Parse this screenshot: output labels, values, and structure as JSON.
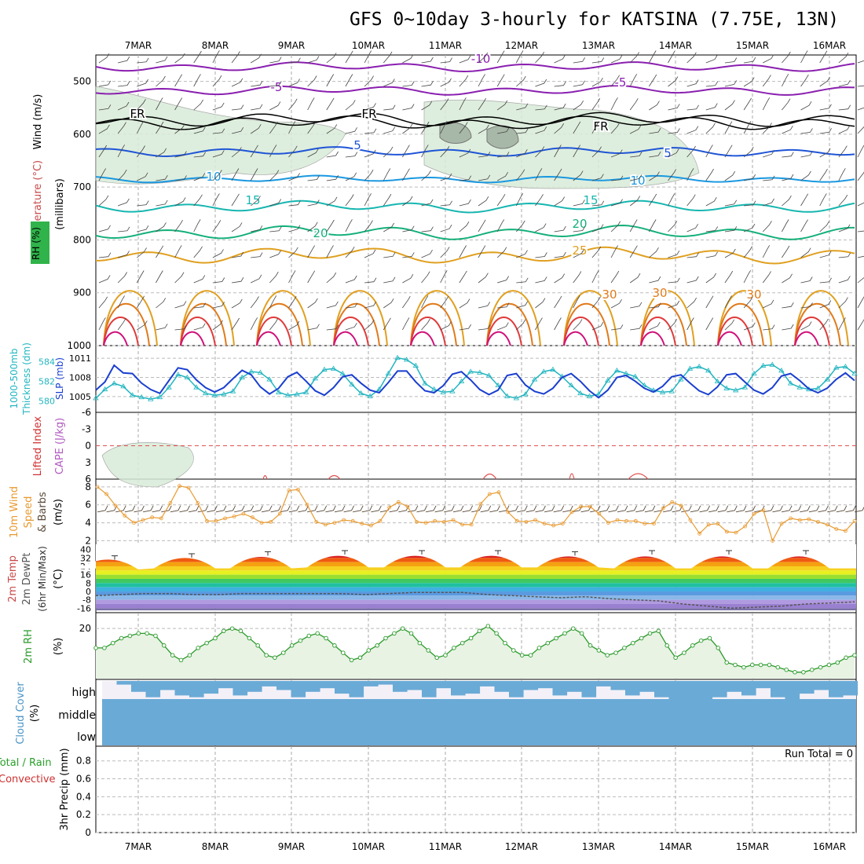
{
  "title": "GFS 0~10day 3-hourly for KATSINA (7.75E, 13N)",
  "colors": {
    "temp_cold": "#8a1fb0",
    "temp_fr": "#000000",
    "temp_5": "#1f55d6",
    "temp_10": "#1a98e0",
    "temp_15": "#16b6b0",
    "temp_20": "#15b07a",
    "temp_25": "#e0a020",
    "temp_30": "#e07a1a",
    "temp_hot": "#e03a3a",
    "temp_hottest": "#d0107a",
    "rh_fill": "#d9ecd9",
    "slp": "#1a3fd0",
    "thickness": "#22b5c0",
    "wind_speed": "#e89a30",
    "barb": "#5a4a3a",
    "rh2m": "#2a9a2a",
    "cloud": "#6aaad6"
  },
  "chart_data": {
    "type": "meteogram",
    "title": "GFS 0~10day 3-hourly for KATSINA (7.75E, 13N)",
    "x_labels": [
      "7MAR",
      "8MAR",
      "9MAR",
      "10MAR",
      "11MAR",
      "12MAR",
      "13MAR",
      "14MAR",
      "15MAR",
      "16MAR"
    ],
    "panel_labels": {
      "p1": [
        "Temperature (°C)",
        "Wind (m/s)",
        "RH (%)",
        "(millibars)"
      ],
      "p2": [
        "1000-500mb",
        "Thickness (dm)",
        "SLP (mb)"
      ],
      "p3": [
        "Lifted Index",
        "CAPE (J/kg)"
      ],
      "p4": [
        "10m Wind",
        "Speed",
        "& Barbs",
        "(m/s)"
      ],
      "p5": [
        "2m Temp",
        "2m DewPt",
        "(6hr Min/Max)",
        "(°C)"
      ],
      "p6": [
        "2m RH",
        "(%)"
      ],
      "p7": [
        "Cloud Cover",
        "(%)"
      ],
      "p8": [
        "Total / Rain",
        "Convective",
        "3hr Precip (mm)"
      ]
    },
    "pressure_ticks": [
      "500",
      "600",
      "700",
      "800",
      "900",
      "1000"
    ],
    "contour_labels": [
      "-10",
      "-5",
      "-5",
      "FR",
      "FR",
      "FR",
      "5",
      "5",
      "10",
      "10",
      "15",
      "15",
      "20",
      "20",
      "25",
      "30",
      "30",
      "30"
    ],
    "thickness": {
      "ticks": [
        "584",
        "582",
        "580"
      ],
      "values": [
        580.3,
        581.2,
        581.8,
        581.5,
        580.6,
        580.4,
        580.2,
        580.4,
        581.4,
        582.7,
        582.4,
        581.4,
        580.8,
        580.6,
        580.7,
        581.0,
        582.4,
        583.0,
        582.9,
        582.2,
        580.9,
        580.6,
        580.7,
        580.9,
        582.3,
        583.2,
        583.3,
        582.8,
        581.7,
        580.8,
        580.5,
        581.2,
        582.8,
        584.4,
        584.2,
        583.6,
        581.8,
        581.2,
        580.9,
        581.0,
        582.0,
        583.0,
        582.9,
        582.6,
        581.6,
        580.5,
        580.3,
        580.7,
        582.2,
        583.0,
        583.2,
        582.5,
        581.6,
        580.8,
        580.5,
        580.7,
        582.1,
        583.1,
        582.8,
        582.5,
        581.6,
        581.1,
        580.9,
        581.0,
        582.2,
        583.3,
        583.5,
        583.1,
        582.0,
        581.3,
        581.1,
        581.4,
        582.8,
        583.6,
        583.7,
        583.1,
        581.8,
        581.4,
        581.2,
        581.3,
        582.2,
        583.4,
        583.5,
        582.8
      ]
    },
    "slp": {
      "ticks": [
        "1011",
        "1008",
        "1005"
      ],
      "values": [
        1006.0,
        1007.3,
        1009.9,
        1008.7,
        1008.6,
        1007.1,
        1006.1,
        1005.5,
        1007.5,
        1009.5,
        1009.2,
        1007.6,
        1006.4,
        1005.7,
        1006.4,
        1007.8,
        1009.1,
        1008.4,
        1006.5,
        1005.4,
        1006.3,
        1008.1,
        1008.8,
        1007.4,
        1005.9,
        1005.2,
        1006.4,
        1008.1,
        1008.4,
        1007.1,
        1006.0,
        1005.6,
        1007.2,
        1009.0,
        1009.0,
        1007.3,
        1005.9,
        1005.6,
        1006.7,
        1008.5,
        1008.9,
        1007.6,
        1006.1,
        1005.3,
        1006.0,
        1008.3,
        1008.6,
        1006.8,
        1005.8,
        1005.4,
        1006.3,
        1008.0,
        1008.6,
        1007.4,
        1005.9,
        1004.8,
        1006.0,
        1008.0,
        1008.3,
        1007.4,
        1006.3,
        1005.7,
        1006.6,
        1008.1,
        1008.4,
        1007.1,
        1005.9,
        1005.3,
        1006.5,
        1008.4,
        1008.6,
        1007.3,
        1006.0,
        1005.4,
        1006.4,
        1008.2,
        1008.6,
        1007.5,
        1006.2,
        1005.6,
        1006.3,
        1007.7,
        1008.7,
        1007.5
      ]
    },
    "lifted_index": {
      "ticks": [
        "-6",
        "-3",
        "0",
        "3",
        "6"
      ]
    },
    "wind_speed": {
      "ticks": [
        "8",
        "6",
        "4",
        "2"
      ],
      "values": [
        8.0,
        7.2,
        5.9,
        4.8,
        4.0,
        4.3,
        4.6,
        4.5,
        6.2,
        8.1,
        7.9,
        6.2,
        4.2,
        4.2,
        4.5,
        4.7,
        5.0,
        4.6,
        4.0,
        4.1,
        5.0,
        7.6,
        7.7,
        6.0,
        4.1,
        3.8,
        4.0,
        4.3,
        4.2,
        3.9,
        3.7,
        4.2,
        5.7,
        6.3,
        5.8,
        4.1,
        4.0,
        4.2,
        4.1,
        4.3,
        3.8,
        3.8,
        6.1,
        7.2,
        7.4,
        5.2,
        4.2,
        4.1,
        4.3,
        3.9,
        3.7,
        3.9,
        5.2,
        5.8,
        5.8,
        5.0,
        4.0,
        4.3,
        4.2,
        4.2,
        3.9,
        3.9,
        5.6,
        6.3,
        5.9,
        4.3,
        2.8,
        3.8,
        3.9,
        3.0,
        2.9,
        3.6,
        5.0,
        5.4,
        2.0,
        3.9,
        4.5,
        4.3,
        4.4,
        4.1,
        3.8,
        3.3,
        3.1,
        4.2
      ]
    },
    "temperature": {
      "ticks": [
        "40",
        "32",
        "24",
        "16",
        "8",
        "0",
        "-8",
        "-16"
      ],
      "max": [
        34,
        36,
        38,
        39,
        39,
        39,
        38,
        39,
        39,
        39
      ],
      "min": [
        21,
        22,
        22,
        23,
        23,
        23,
        23,
        22,
        22,
        22
      ],
      "dewpoint": [
        -4,
        -3,
        -2,
        -2,
        -3,
        -3,
        -2,
        -2,
        -2,
        -2,
        -2,
        -3,
        -2,
        -1,
        -1,
        -1,
        -3,
        -4,
        -5,
        -6,
        -5,
        -7,
        -8,
        -9,
        -12,
        -14,
        -16,
        -15,
        -14,
        -12,
        -11,
        -10
      ]
    },
    "rh2m": {
      "ticks": [
        "20"
      ],
      "values": [
        12,
        12,
        14,
        16,
        17,
        18,
        18,
        17,
        13,
        9,
        7,
        9,
        12,
        14,
        16,
        19,
        20,
        19,
        16,
        13,
        9,
        8,
        10,
        13,
        15,
        17,
        18,
        16,
        13,
        10,
        7,
        8,
        11,
        13,
        16,
        18,
        20,
        18,
        14,
        11,
        8,
        9,
        12,
        14,
        16,
        19,
        21,
        18,
        14,
        11,
        9,
        9,
        12,
        14,
        16,
        18,
        20,
        18,
        13,
        11,
        9,
        10,
        12,
        14,
        16,
        18,
        19,
        13,
        8,
        10,
        13,
        15,
        16,
        12,
        6,
        5,
        4,
        5,
        5,
        5,
        4,
        3,
        2,
        2,
        3,
        4,
        5,
        6,
        8,
        9
      ]
    },
    "cloud_cover": {
      "levels": [
        "high",
        "middle",
        "low"
      ]
    },
    "precip": {
      "ticks": [
        "0.8",
        "0.6",
        "0.4",
        "0.2",
        "0"
      ],
      "run_total_label": "Run Total = 0"
    }
  }
}
